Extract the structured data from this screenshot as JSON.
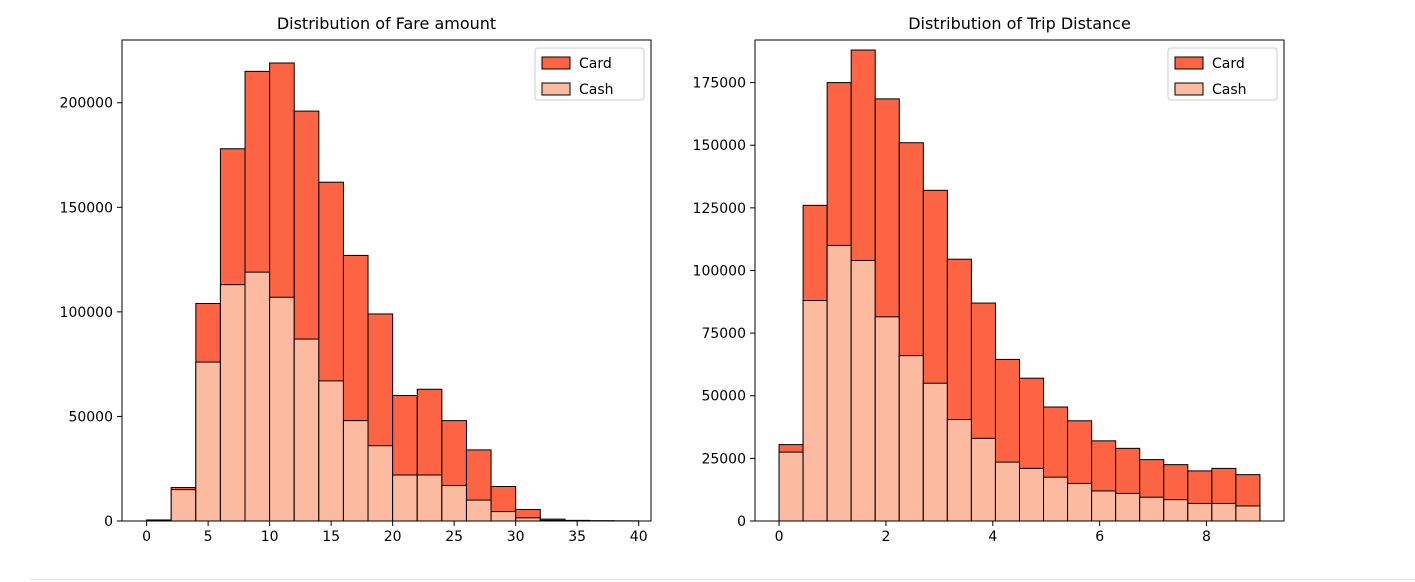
{
  "chart_data": [
    {
      "type": "bar",
      "stacked": true,
      "title": "Distribution of Fare amount",
      "xlabel": "",
      "ylabel": "",
      "bin_edges": [
        0,
        2,
        4,
        6,
        8,
        10,
        12,
        14,
        16,
        18,
        20,
        22,
        24,
        26,
        28,
        30,
        32,
        34,
        36,
        38,
        40
      ],
      "xlim": [
        -2,
        41
      ],
      "ylim": [
        0,
        230000
      ],
      "xticks": [
        0,
        5,
        10,
        15,
        20,
        25,
        30,
        35,
        40
      ],
      "yticks": [
        0,
        50000,
        100000,
        150000,
        200000
      ],
      "legend_position": "upper-right",
      "series": [
        {
          "name": "Card",
          "color": "#fc6443",
          "values": [
            200,
            1000,
            28000,
            65000,
            96000,
            112000,
            109000,
            95000,
            79000,
            63000,
            38000,
            41000,
            31000,
            24000,
            12000,
            4000,
            600,
            200,
            100,
            50
          ]
        },
        {
          "name": "Cash",
          "color": "#fcbba1",
          "values": [
            300,
            15000,
            76000,
            113000,
            119000,
            107000,
            87000,
            67000,
            48000,
            36000,
            22000,
            22000,
            17000,
            10000,
            4500,
            1500,
            300,
            100,
            50,
            20
          ]
        }
      ]
    },
    {
      "type": "bar",
      "stacked": true,
      "title": "Distribution of Trip Distance",
      "xlabel": "",
      "ylabel": "",
      "bin_edges": [
        0,
        0.45,
        0.9,
        1.35,
        1.8,
        2.25,
        2.7,
        3.15,
        3.6,
        4.05,
        4.5,
        4.95,
        5.4,
        5.85,
        6.3,
        6.75,
        7.2,
        7.65,
        8.1,
        8.55,
        9.0
      ],
      "xlim": [
        -0.45,
        9.45
      ],
      "ylim": [
        0,
        192000
      ],
      "xticks": [
        0,
        2,
        4,
        6,
        8
      ],
      "yticks": [
        0,
        25000,
        50000,
        75000,
        100000,
        125000,
        150000,
        175000
      ],
      "legend_position": "upper-right",
      "series": [
        {
          "name": "Card",
          "color": "#fc6443",
          "values": [
            3000,
            38000,
            65000,
            84000,
            87000,
            85000,
            77000,
            64000,
            54000,
            41000,
            36000,
            28000,
            25000,
            20000,
            18000,
            15000,
            14000,
            13000,
            14000,
            12500
          ]
        },
        {
          "name": "Cash",
          "color": "#fcbba1",
          "values": [
            27500,
            88000,
            110000,
            104000,
            81500,
            66000,
            55000,
            40500,
            33000,
            23500,
            21000,
            17500,
            15000,
            12000,
            11000,
            9500,
            8500,
            7000,
            7000,
            6000
          ]
        }
      ]
    }
  ]
}
